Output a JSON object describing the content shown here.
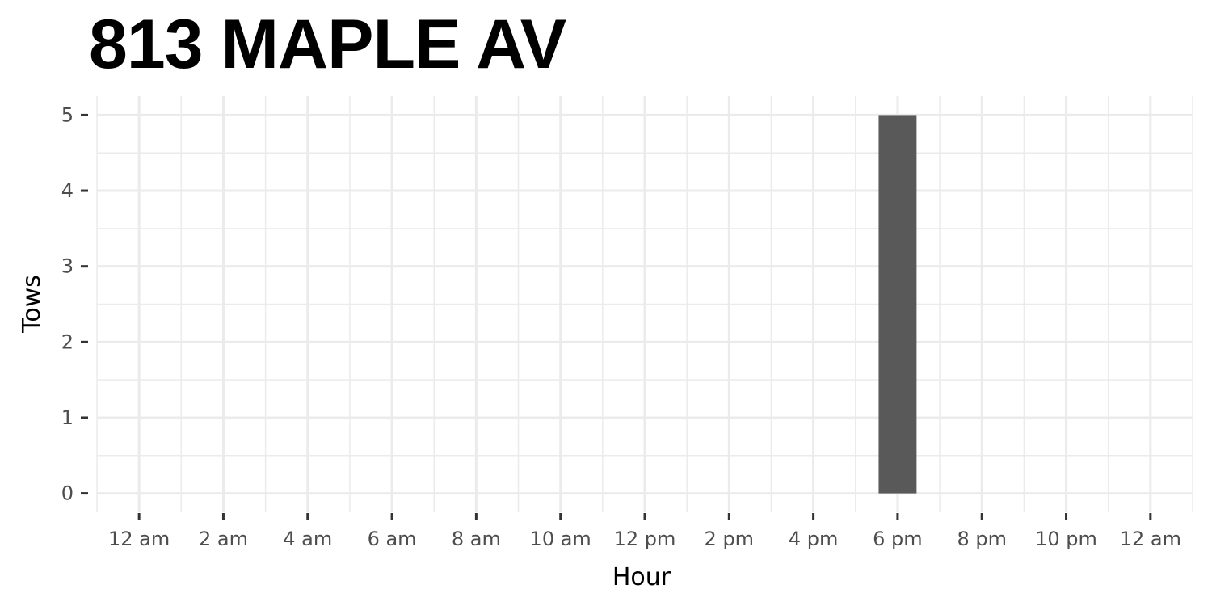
{
  "chart_data": {
    "type": "bar",
    "title": "813 MAPLE AV",
    "xlabel": "Hour",
    "ylabel": "Tows",
    "x_tick_labels": [
      "12 am",
      "2 am",
      "4 am",
      "6 am",
      "8 am",
      "10 am",
      "12 pm",
      "2 pm",
      "4 pm",
      "6 pm",
      "8 pm",
      "10 pm",
      "12 am"
    ],
    "x_tick_hours": [
      0,
      2,
      4,
      6,
      8,
      10,
      12,
      14,
      16,
      18,
      20,
      22,
      24
    ],
    "xlim": [
      -1,
      25
    ],
    "y_ticks": [
      0,
      1,
      2,
      3,
      4,
      5
    ],
    "ylim": [
      -0.25,
      5.25
    ],
    "grid": true,
    "bar_color": "#595959",
    "bars": [
      {
        "hour": 18,
        "value": 5
      }
    ]
  }
}
